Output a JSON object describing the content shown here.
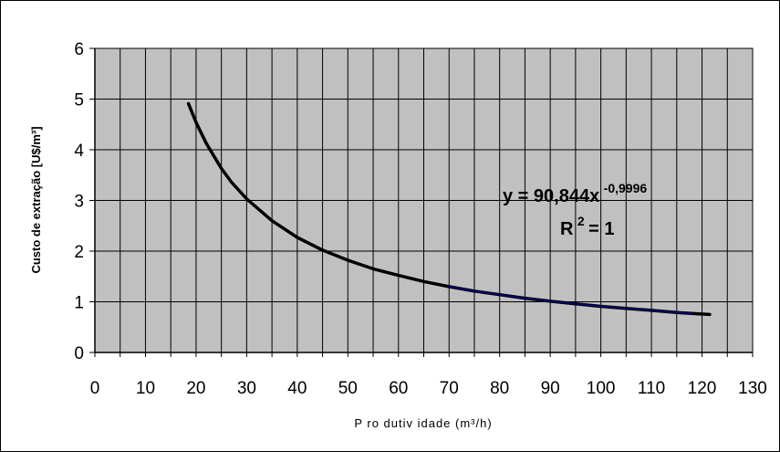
{
  "chart_data": {
    "type": "line",
    "xlabel": "P ro dutiv idade (m³/h)",
    "ylabel": "Custo de extração [U$/m³]",
    "xlim": [
      0,
      130
    ],
    "ylim": [
      0,
      6
    ],
    "xticks": [
      0,
      10,
      20,
      30,
      40,
      50,
      60,
      70,
      80,
      90,
      100,
      110,
      120,
      130
    ],
    "yticks": [
      0,
      1,
      2,
      3,
      4,
      5,
      6
    ],
    "x_minor_step": 5,
    "grid": true,
    "plot_background": "#c0c0c0",
    "series": [
      {
        "color": "#000000",
        "x": [
          18.5,
          20,
          22,
          25,
          27,
          30,
          35,
          40,
          45,
          50,
          55,
          60,
          65,
          70,
          75,
          80,
          85,
          90,
          95,
          100,
          105,
          110,
          115,
          118,
          121.5
        ],
        "y": [
          4.91,
          4.54,
          4.13,
          3.63,
          3.36,
          3.03,
          2.6,
          2.27,
          2.02,
          1.82,
          1.65,
          1.52,
          1.4,
          1.3,
          1.21,
          1.14,
          1.07,
          1.01,
          0.96,
          0.91,
          0.87,
          0.83,
          0.79,
          0.77,
          0.75
        ]
      },
      {
        "color": "#000080",
        "x": [
          70,
          75,
          80,
          85,
          90,
          95,
          100,
          105,
          110,
          115,
          118
        ],
        "y": [
          1.3,
          1.21,
          1.14,
          1.07,
          1.01,
          0.96,
          0.91,
          0.87,
          0.83,
          0.79,
          0.77
        ]
      }
    ],
    "annotations": {
      "equation_base": "y = 90,844x",
      "equation_exponent": "-0,9996",
      "r2_base": "R",
      "r2_exponent": "2",
      "r2_value": " = 1"
    }
  }
}
